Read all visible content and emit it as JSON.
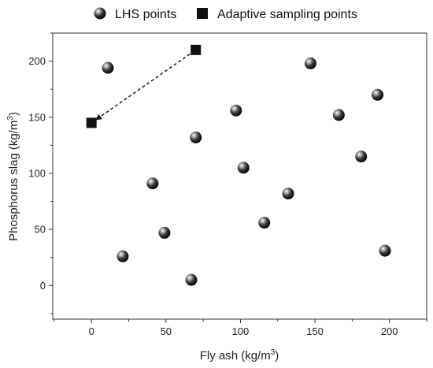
{
  "chart_data": {
    "type": "scatter",
    "xlabel_prefix": "Fly ash (kg/m",
    "xlabel_sup": "3",
    "xlabel_suffix": ")",
    "ylabel_prefix": "Phosphorus slag (kg/m",
    "ylabel_sup": "3",
    "ylabel_suffix": ")",
    "xlim": [
      -26,
      225
    ],
    "ylim": [
      -30,
      225
    ],
    "xticks": [
      0,
      50,
      100,
      150,
      200
    ],
    "yticks": [
      0,
      50,
      100,
      150,
      200
    ],
    "legend_placement": "top",
    "grid": false,
    "series": [
      {
        "name": "LHS points",
        "marker": "sphere",
        "x": [
          11,
          21,
          41,
          49,
          67,
          70,
          97,
          102,
          116,
          132,
          147,
          166,
          181,
          192,
          197
        ],
        "y": [
          194,
          26,
          91,
          47,
          5,
          132,
          156,
          105,
          56,
          82,
          198,
          152,
          115,
          170,
          31
        ]
      },
      {
        "name": "Adaptive sampling points",
        "marker": "square",
        "connected": "dashed-arrow",
        "x": [
          0,
          70
        ],
        "y": [
          145,
          210
        ]
      }
    ]
  },
  "colors": {
    "marker": "#111111",
    "axis": "#333333"
  }
}
